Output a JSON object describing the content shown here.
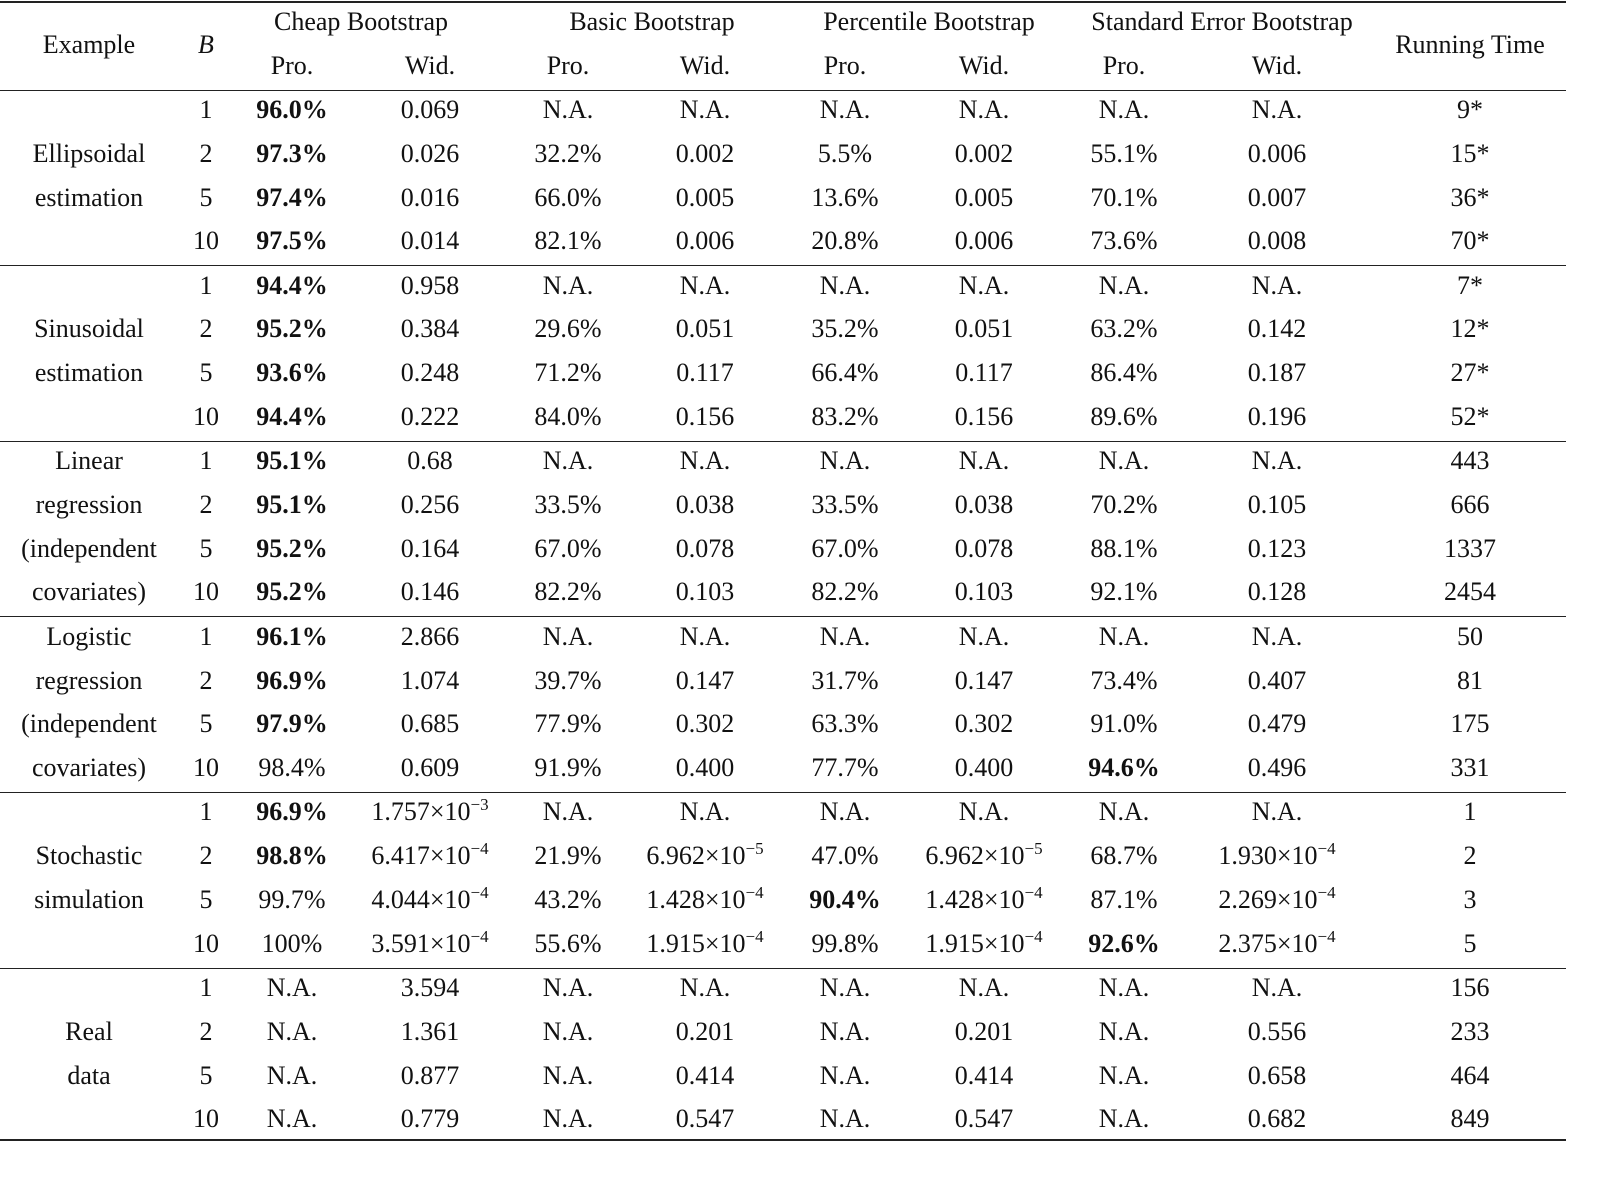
{
  "table": {
    "header": {
      "example": "Example",
      "b": "B",
      "groups": [
        "Cheap Bootstrap",
        "Basic Bootstrap",
        "Percentile Bootstrap",
        "Standard Error Bootstrap"
      ],
      "sub": [
        "Pro.",
        "Wid."
      ],
      "running_time": "Running Time"
    },
    "blocks": [
      {
        "label_lines": [
          "Ellipsoidal",
          "estimation"
        ],
        "rows": [
          {
            "B": "1",
            "cells": [
              {
                "v": "96.0%",
                "bold": true
              },
              {
                "v": "0.069"
              },
              {
                "v": "N.A."
              },
              {
                "v": "N.A."
              },
              {
                "v": "N.A."
              },
              {
                "v": "N.A."
              },
              {
                "v": "N.A."
              },
              {
                "v": "N.A."
              }
            ],
            "time": "9*"
          },
          {
            "B": "2",
            "cells": [
              {
                "v": "97.3%",
                "bold": true
              },
              {
                "v": "0.026"
              },
              {
                "v": "32.2%"
              },
              {
                "v": "0.002"
              },
              {
                "v": "5.5%"
              },
              {
                "v": "0.002"
              },
              {
                "v": "55.1%"
              },
              {
                "v": "0.006"
              }
            ],
            "time": "15*"
          },
          {
            "B": "5",
            "cells": [
              {
                "v": "97.4%",
                "bold": true
              },
              {
                "v": "0.016"
              },
              {
                "v": "66.0%"
              },
              {
                "v": "0.005"
              },
              {
                "v": "13.6%"
              },
              {
                "v": "0.005"
              },
              {
                "v": "70.1%"
              },
              {
                "v": "0.007"
              }
            ],
            "time": "36*"
          },
          {
            "B": "10",
            "cells": [
              {
                "v": "97.5%",
                "bold": true
              },
              {
                "v": "0.014"
              },
              {
                "v": "82.1%"
              },
              {
                "v": "0.006"
              },
              {
                "v": "20.8%"
              },
              {
                "v": "0.006"
              },
              {
                "v": "73.6%"
              },
              {
                "v": "0.008"
              }
            ],
            "time": "70*"
          }
        ]
      },
      {
        "label_lines": [
          "Sinusoidal",
          "estimation"
        ],
        "rows": [
          {
            "B": "1",
            "cells": [
              {
                "v": "94.4%",
                "bold": true
              },
              {
                "v": "0.958"
              },
              {
                "v": "N.A."
              },
              {
                "v": "N.A."
              },
              {
                "v": "N.A."
              },
              {
                "v": "N.A."
              },
              {
                "v": "N.A."
              },
              {
                "v": "N.A."
              }
            ],
            "time": "7*"
          },
          {
            "B": "2",
            "cells": [
              {
                "v": "95.2%",
                "bold": true
              },
              {
                "v": "0.384"
              },
              {
                "v": "29.6%"
              },
              {
                "v": "0.051"
              },
              {
                "v": "35.2%"
              },
              {
                "v": "0.051"
              },
              {
                "v": "63.2%"
              },
              {
                "v": "0.142"
              }
            ],
            "time": "12*"
          },
          {
            "B": "5",
            "cells": [
              {
                "v": "93.6%",
                "bold": true
              },
              {
                "v": "0.248"
              },
              {
                "v": "71.2%"
              },
              {
                "v": "0.117"
              },
              {
                "v": "66.4%"
              },
              {
                "v": "0.117"
              },
              {
                "v": "86.4%"
              },
              {
                "v": "0.187"
              }
            ],
            "time": "27*"
          },
          {
            "B": "10",
            "cells": [
              {
                "v": "94.4%",
                "bold": true
              },
              {
                "v": "0.222"
              },
              {
                "v": "84.0%"
              },
              {
                "v": "0.156"
              },
              {
                "v": "83.2%"
              },
              {
                "v": "0.156"
              },
              {
                "v": "89.6%"
              },
              {
                "v": "0.196"
              }
            ],
            "time": "52*"
          }
        ]
      },
      {
        "label_lines": [
          "Linear",
          "regression",
          "(independent",
          "covariates)"
        ],
        "rows": [
          {
            "B": "1",
            "cells": [
              {
                "v": "95.1%",
                "bold": true
              },
              {
                "v": "0.68"
              },
              {
                "v": "N.A."
              },
              {
                "v": "N.A."
              },
              {
                "v": "N.A."
              },
              {
                "v": "N.A."
              },
              {
                "v": "N.A."
              },
              {
                "v": "N.A."
              }
            ],
            "time": "443"
          },
          {
            "B": "2",
            "cells": [
              {
                "v": "95.1%",
                "bold": true
              },
              {
                "v": "0.256"
              },
              {
                "v": "33.5%"
              },
              {
                "v": "0.038"
              },
              {
                "v": "33.5%"
              },
              {
                "v": "0.038"
              },
              {
                "v": "70.2%"
              },
              {
                "v": "0.105"
              }
            ],
            "time": "666"
          },
          {
            "B": "5",
            "cells": [
              {
                "v": "95.2%",
                "bold": true
              },
              {
                "v": "0.164"
              },
              {
                "v": "67.0%"
              },
              {
                "v": "0.078"
              },
              {
                "v": "67.0%"
              },
              {
                "v": "0.078"
              },
              {
                "v": "88.1%"
              },
              {
                "v": "0.123"
              }
            ],
            "time": "1337"
          },
          {
            "B": "10",
            "cells": [
              {
                "v": "95.2%",
                "bold": true
              },
              {
                "v": "0.146"
              },
              {
                "v": "82.2%"
              },
              {
                "v": "0.103"
              },
              {
                "v": "82.2%"
              },
              {
                "v": "0.103"
              },
              {
                "v": "92.1%"
              },
              {
                "v": "0.128"
              }
            ],
            "time": "2454"
          }
        ]
      },
      {
        "label_lines": [
          "Logistic",
          "regression",
          "(independent",
          "covariates)"
        ],
        "rows": [
          {
            "B": "1",
            "cells": [
              {
                "v": "96.1%",
                "bold": true
              },
              {
                "v": "2.866"
              },
              {
                "v": "N.A."
              },
              {
                "v": "N.A."
              },
              {
                "v": "N.A."
              },
              {
                "v": "N.A."
              },
              {
                "v": "N.A."
              },
              {
                "v": "N.A."
              }
            ],
            "time": "50"
          },
          {
            "B": "2",
            "cells": [
              {
                "v": "96.9%",
                "bold": true
              },
              {
                "v": "1.074"
              },
              {
                "v": "39.7%"
              },
              {
                "v": "0.147"
              },
              {
                "v": "31.7%"
              },
              {
                "v": "0.147"
              },
              {
                "v": "73.4%"
              },
              {
                "v": "0.407"
              }
            ],
            "time": "81"
          },
          {
            "B": "5",
            "cells": [
              {
                "v": "97.9%",
                "bold": true
              },
              {
                "v": "0.685"
              },
              {
                "v": "77.9%"
              },
              {
                "v": "0.302"
              },
              {
                "v": "63.3%"
              },
              {
                "v": "0.302"
              },
              {
                "v": "91.0%"
              },
              {
                "v": "0.479"
              }
            ],
            "time": "175"
          },
          {
            "B": "10",
            "cells": [
              {
                "v": "98.4%"
              },
              {
                "v": "0.609"
              },
              {
                "v": "91.9%"
              },
              {
                "v": "0.400"
              },
              {
                "v": "77.7%"
              },
              {
                "v": "0.400"
              },
              {
                "v": "94.6%",
                "bold": true
              },
              {
                "v": "0.496"
              }
            ],
            "time": "331"
          }
        ]
      },
      {
        "label_lines": [
          "Stochastic",
          "simulation"
        ],
        "rows": [
          {
            "B": "1",
            "cells": [
              {
                "v": "96.9%",
                "bold": true
              },
              {
                "v": "1.757×10",
                "exp": "−3"
              },
              {
                "v": "N.A."
              },
              {
                "v": "N.A."
              },
              {
                "v": "N.A."
              },
              {
                "v": "N.A."
              },
              {
                "v": "N.A."
              },
              {
                "v": "N.A."
              }
            ],
            "time": "1"
          },
          {
            "B": "2",
            "cells": [
              {
                "v": "98.8%",
                "bold": true
              },
              {
                "v": "6.417×10",
                "exp": "−4"
              },
              {
                "v": "21.9%"
              },
              {
                "v": "6.962×10",
                "exp": "−5"
              },
              {
                "v": "47.0%"
              },
              {
                "v": "6.962×10",
                "exp": "−5"
              },
              {
                "v": "68.7%"
              },
              {
                "v": "1.930×10",
                "exp": "−4"
              }
            ],
            "time": "2"
          },
          {
            "B": "5",
            "cells": [
              {
                "v": "99.7%"
              },
              {
                "v": "4.044×10",
                "exp": "−4"
              },
              {
                "v": "43.2%"
              },
              {
                "v": "1.428×10",
                "exp": "−4"
              },
              {
                "v": "90.4%",
                "bold": true
              },
              {
                "v": "1.428×10",
                "exp": "−4"
              },
              {
                "v": "87.1%"
              },
              {
                "v": "2.269×10",
                "exp": "−4"
              }
            ],
            "time": "3"
          },
          {
            "B": "10",
            "cells": [
              {
                "v": "100%"
              },
              {
                "v": "3.591×10",
                "exp": "−4"
              },
              {
                "v": "55.6%"
              },
              {
                "v": "1.915×10",
                "exp": "−4"
              },
              {
                "v": "99.8%"
              },
              {
                "v": "1.915×10",
                "exp": "−4"
              },
              {
                "v": "92.6%",
                "bold": true
              },
              {
                "v": "2.375×10",
                "exp": "−4"
              }
            ],
            "time": "5"
          }
        ]
      },
      {
        "label_lines": [
          "Real",
          "data"
        ],
        "rows": [
          {
            "B": "1",
            "cells": [
              {
                "v": "N.A."
              },
              {
                "v": "3.594"
              },
              {
                "v": "N.A."
              },
              {
                "v": "N.A."
              },
              {
                "v": "N.A."
              },
              {
                "v": "N.A."
              },
              {
                "v": "N.A."
              },
              {
                "v": "N.A."
              }
            ],
            "time": "156"
          },
          {
            "B": "2",
            "cells": [
              {
                "v": "N.A."
              },
              {
                "v": "1.361"
              },
              {
                "v": "N.A."
              },
              {
                "v": "0.201"
              },
              {
                "v": "N.A."
              },
              {
                "v": "0.201"
              },
              {
                "v": "N.A."
              },
              {
                "v": "0.556"
              }
            ],
            "time": "233"
          },
          {
            "B": "5",
            "cells": [
              {
                "v": "N.A."
              },
              {
                "v": "0.877"
              },
              {
                "v": "N.A."
              },
              {
                "v": "0.414"
              },
              {
                "v": "N.A."
              },
              {
                "v": "0.414"
              },
              {
                "v": "N.A."
              },
              {
                "v": "0.658"
              }
            ],
            "time": "464"
          },
          {
            "B": "10",
            "cells": [
              {
                "v": "N.A."
              },
              {
                "v": "0.779"
              },
              {
                "v": "N.A."
              },
              {
                "v": "0.547"
              },
              {
                "v": "N.A."
              },
              {
                "v": "0.547"
              },
              {
                "v": "N.A."
              },
              {
                "v": "0.682"
              }
            ],
            "time": "849"
          }
        ]
      }
    ]
  }
}
